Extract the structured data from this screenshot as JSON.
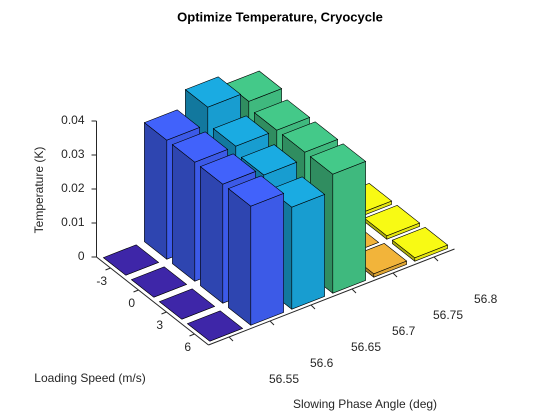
{
  "chart_data": {
    "type": "bar3",
    "title": "Optimize Temperature, Cryocycle",
    "xlabel": "Slowing Phase Angle (deg)",
    "ylabel": "Loading Speed (m/s)",
    "zlabel": "Temperature (K)",
    "x": [
      56.55,
      56.6,
      56.65,
      56.7,
      56.75,
      56.8
    ],
    "y": [
      -3,
      0,
      3,
      6
    ],
    "colors": [
      "#3e26a8",
      "#4162fb",
      "#1aabe2",
      "#44c989",
      "#f2b43a",
      "#f8fa14"
    ],
    "values": [
      [
        0,
        0,
        0,
        0
      ],
      [
        0.035,
        0.035,
        0.035,
        0.035
      ],
      [
        0.04,
        0.035,
        0.033,
        0.03
      ],
      [
        0.037,
        0.035,
        0.035,
        0.035
      ],
      [
        0,
        0,
        0,
        0.001
      ],
      [
        0,
        0.001,
        0.001,
        0.001
      ]
    ],
    "zlim": [
      0,
      0.04
    ],
    "zticks": [
      0,
      0.01,
      0.02,
      0.03,
      0.04
    ],
    "grid": false
  }
}
